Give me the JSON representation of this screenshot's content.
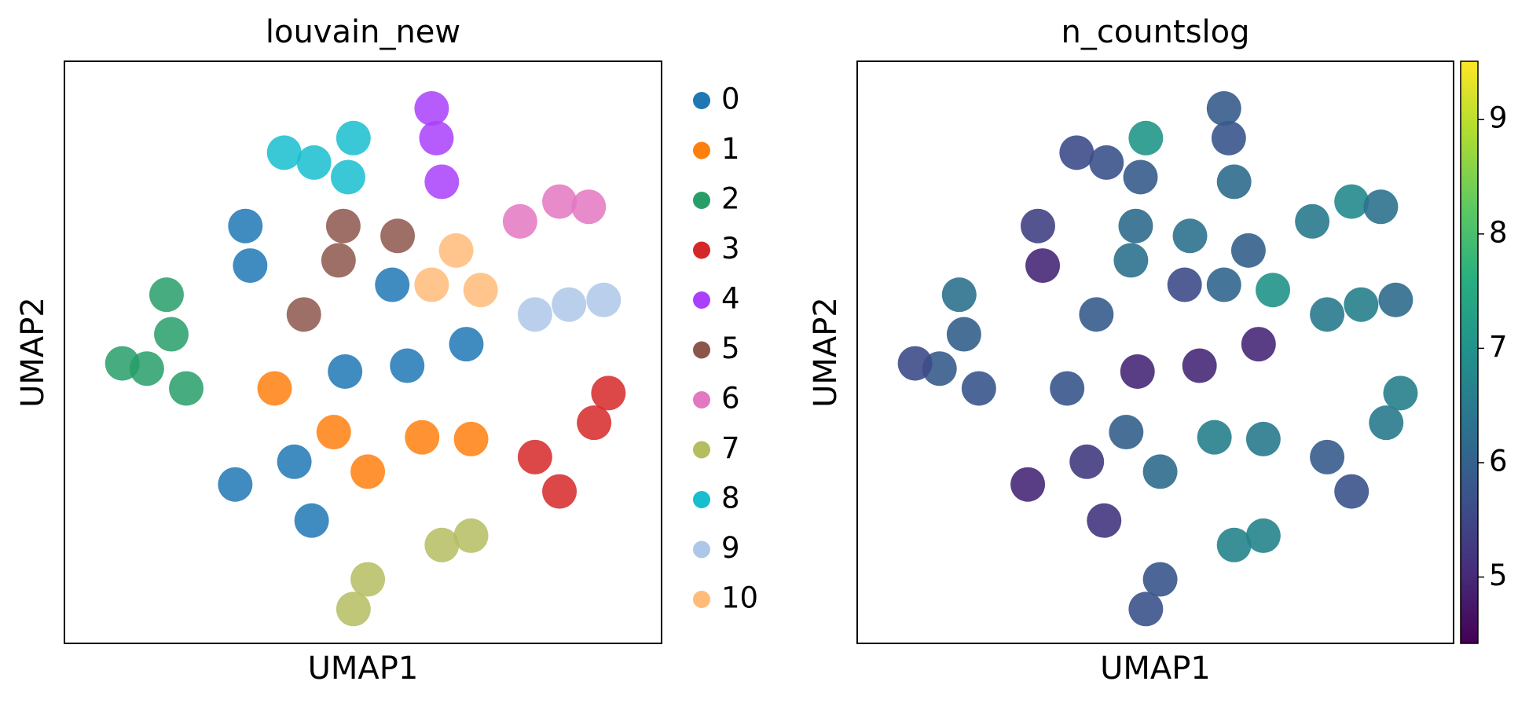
{
  "chart_data": [
    {
      "type": "scatter",
      "title": "louvain_new",
      "xlabel": "UMAP1",
      "ylabel": "UMAP2",
      "xlim": [
        0,
        100
      ],
      "ylim": [
        0,
        100
      ],
      "series": [
        {
          "name": "0",
          "color": "#1f77b4",
          "x": [
            31.1,
            28.6,
            47.0,
            57.4,
            67.3,
            54.9,
            38.5,
            30.3,
            41.4
          ],
          "y": [
            64.9,
            27.3,
            46.7,
            47.7,
            51.4,
            61.6,
            31.2,
            71.7,
            21.1
          ]
        },
        {
          "name": "1",
          "color": "#ff7f0e",
          "x": [
            59.9,
            35.2,
            50.8,
            68.1,
            45.1
          ],
          "y": [
            35.4,
            43.8,
            29.5,
            35.1,
            36.3
          ]
        },
        {
          "name": "2",
          "color": "#279e68",
          "x": [
            17.1,
            13.8,
            20.4,
            17.9,
            9.7
          ],
          "y": [
            59.9,
            47.2,
            43.8,
            53.1,
            48.1
          ]
        },
        {
          "name": "3",
          "color": "#d62728",
          "x": [
            88.7,
            78.8,
            91.1,
            82.9
          ],
          "y": [
            37.9,
            32.0,
            43.0,
            26.1
          ]
        },
        {
          "name": "4",
          "color": "#aa40fc",
          "x": [
            62.3,
            61.5,
            63.2
          ],
          "y": [
            86.8,
            91.9,
            79.3
          ]
        },
        {
          "name": "5",
          "color": "#8c564b",
          "x": [
            45.9,
            40.1,
            46.7,
            55.8
          ],
          "y": [
            65.8,
            56.5,
            71.7,
            70.0
          ]
        },
        {
          "name": "6",
          "color": "#e377c2",
          "x": [
            82.9,
            87.8,
            76.3
          ],
          "y": [
            75.9,
            75.0,
            72.5
          ]
        },
        {
          "name": "7",
          "color": "#b5bd61",
          "x": [
            63.2,
            50.8,
            68.1,
            48.4
          ],
          "y": [
            16.9,
            11.0,
            18.5,
            5.9
          ]
        },
        {
          "name": "8",
          "color": "#17becf",
          "x": [
            41.8,
            47.5,
            36.8,
            48.4
          ],
          "y": [
            82.6,
            80.1,
            84.3,
            86.8
          ]
        },
        {
          "name": "9",
          "color": "#aec7e8",
          "x": [
            84.5,
            90.3,
            78.8
          ],
          "y": [
            58.2,
            59.0,
            56.5
          ]
        },
        {
          "name": "10",
          "color": "#ffbb78",
          "x": [
            65.6,
            61.5,
            69.7
          ],
          "y": [
            67.5,
            61.6,
            60.7
          ]
        }
      ]
    },
    {
      "type": "scatter",
      "title": "n_countslog",
      "xlabel": "UMAP1",
      "ylabel": "UMAP2",
      "xlim": [
        0,
        100
      ],
      "ylim": [
        0,
        100
      ],
      "colormap": "viridis",
      "clim": [
        4.42,
        9.51
      ],
      "cticks": [
        5,
        6,
        7,
        8,
        9
      ],
      "x": [
        31.1,
        28.6,
        47.0,
        57.4,
        67.3,
        54.9,
        38.5,
        30.3,
        41.4,
        59.9,
        35.2,
        50.8,
        68.1,
        45.1,
        17.1,
        13.8,
        20.4,
        17.9,
        9.7,
        88.7,
        78.8,
        91.1,
        82.9,
        62.3,
        61.5,
        63.2,
        45.9,
        40.1,
        46.7,
        55.8,
        82.9,
        87.8,
        76.3,
        63.2,
        50.8,
        68.1,
        48.4,
        41.8,
        47.5,
        36.8,
        48.4,
        84.5,
        90.3,
        78.8,
        65.6,
        61.5,
        69.7
      ],
      "y": [
        64.9,
        27.3,
        46.7,
        47.7,
        51.4,
        61.6,
        31.2,
        71.7,
        21.1,
        35.4,
        43.8,
        29.5,
        35.1,
        36.3,
        59.9,
        47.2,
        43.8,
        53.1,
        48.1,
        37.9,
        32.0,
        43.0,
        26.1,
        86.8,
        91.9,
        79.3,
        65.8,
        56.5,
        71.7,
        70.0,
        75.9,
        75.0,
        72.5,
        16.9,
        11.0,
        18.5,
        5.9,
        82.6,
        80.1,
        84.3,
        86.8,
        58.2,
        59.0,
        56.5,
        67.5,
        61.6,
        60.7
      ],
      "values": [
        5.0,
        5.0,
        5.0,
        5.0,
        5.0,
        5.6,
        5.3,
        5.4,
        5.2,
        6.6,
        5.8,
        6.2,
        6.5,
        6.0,
        6.3,
        5.9,
        5.8,
        6.0,
        5.6,
        6.5,
        5.9,
        6.6,
        5.7,
        5.8,
        5.9,
        6.2,
        6.3,
        5.9,
        6.2,
        6.3,
        6.8,
        6.3,
        6.5,
        6.7,
        5.8,
        6.7,
        5.7,
        5.7,
        5.9,
        5.6,
        7.1,
        6.6,
        6.2,
        6.5,
        6.0,
        6.1,
        7.0
      ]
    }
  ]
}
